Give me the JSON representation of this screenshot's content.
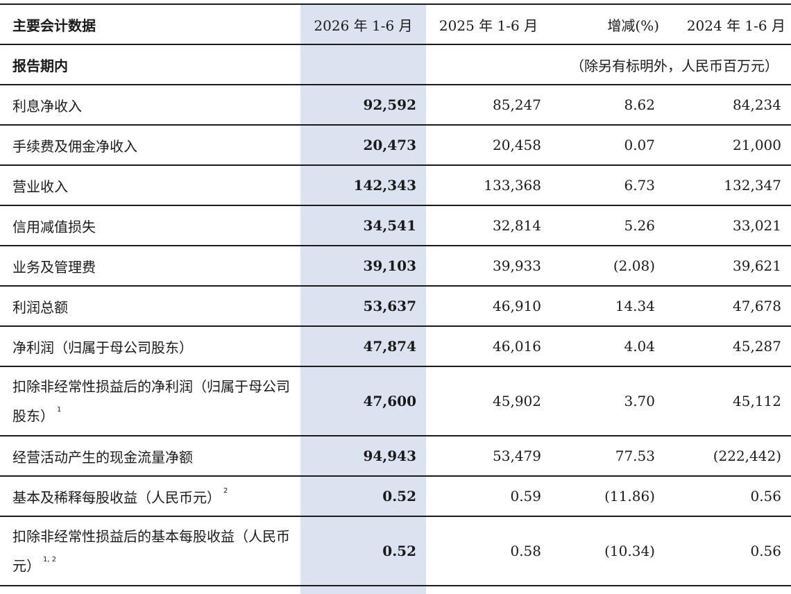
{
  "header": {
    "title": "主要会计数据",
    "columns": [
      "2026 年 1-6 月",
      "2025 年 1-6 月",
      "增减(%)",
      "2024 年 1-6 月"
    ]
  },
  "subheader": {
    "label": "报告期内",
    "note": "（除另有标明外，人民币百万元）"
  },
  "rows": [
    {
      "label": "利息净收入",
      "sup": "",
      "values": [
        "92,592",
        "85,247",
        "8.62",
        "84,234"
      ]
    },
    {
      "label": "手续费及佣金净收入",
      "sup": "",
      "values": [
        "20,473",
        "20,458",
        "0.07",
        "21,000"
      ]
    },
    {
      "label": "营业收入",
      "sup": "",
      "values": [
        "142,343",
        "133,368",
        "6.73",
        "132,347"
      ]
    },
    {
      "label": "信用减值损失",
      "sup": "",
      "values": [
        "34,541",
        "32,814",
        "5.26",
        "33,021"
      ]
    },
    {
      "label": "业务及管理费",
      "sup": "",
      "values": [
        "39,103",
        "39,933",
        "(2.08)",
        "39,621"
      ]
    },
    {
      "label": "利润总额",
      "sup": "",
      "values": [
        "53,637",
        "46,910",
        "14.34",
        "47,678"
      ]
    },
    {
      "label": "净利润（归属于母公司股东）",
      "sup": "",
      "values": [
        "47,874",
        "46,016",
        "4.04",
        "45,287"
      ]
    },
    {
      "label": "扣除非经常性损益后的净利润（归属于母公司股东）",
      "sup": "1",
      "values": [
        "47,600",
        "45,902",
        "3.70",
        "45,112"
      ]
    },
    {
      "label": "经营活动产生的现金流量净额",
      "sup": "",
      "values": [
        "94,943",
        "53,479",
        "77.53",
        "(222,442)"
      ]
    },
    {
      "label": "基本及稀释每股收益（人民币元）",
      "sup": "2",
      "values": [
        "0.52",
        "0.59",
        "(11.86)",
        "0.56"
      ]
    },
    {
      "label": "扣除非经常性损益后的基本每股收益（人民币元）",
      "sup": "1, 2",
      "values": [
        "0.52",
        "0.58",
        "(10.34)",
        "0.56"
      ]
    }
  ]
}
